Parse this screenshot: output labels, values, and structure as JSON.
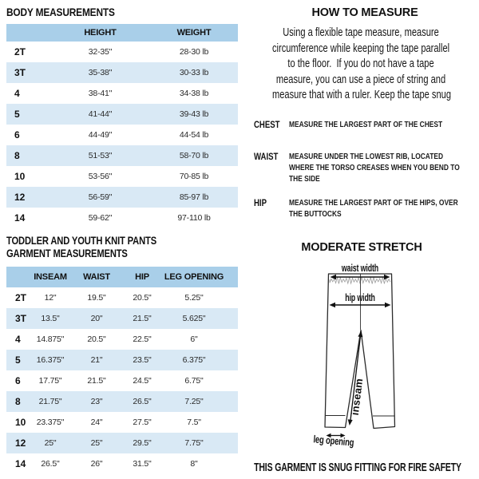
{
  "body_measurements": {
    "title": "BODY MEASUREMENTS",
    "columns": [
      "HEIGHT",
      "WEIGHT"
    ],
    "rows": [
      {
        "size": "2T",
        "values": [
          "32-35\"",
          "28-30 lb"
        ]
      },
      {
        "size": "3T",
        "values": [
          "35-38\"",
          "30-33 lb"
        ]
      },
      {
        "size": "4",
        "values": [
          "38-41\"",
          "34-38 lb"
        ]
      },
      {
        "size": "5",
        "values": [
          "41-44\"",
          "39-43 lb"
        ]
      },
      {
        "size": "6",
        "values": [
          "44-49\"",
          "44-54 lb"
        ]
      },
      {
        "size": "8",
        "values": [
          "51-53\"",
          "58-70 lb"
        ]
      },
      {
        "size": "10",
        "values": [
          "53-56\"",
          "70-85 lb"
        ]
      },
      {
        "size": "12",
        "values": [
          "56-59\"",
          "85-97 lb"
        ]
      },
      {
        "size": "14",
        "values": [
          "59-62\"",
          "97-110 lb"
        ]
      }
    ]
  },
  "garment_measurements": {
    "title_line1": "TODDLER AND YOUTH KNIT PANTS",
    "title_line2": "GARMENT MEASUREMENTS",
    "columns": [
      "INSEAM",
      "WAIST",
      "HIP",
      "LEG OPENING"
    ],
    "rows": [
      {
        "size": "2T",
        "values": [
          "12\"",
          "19.5\"",
          "20.5\"",
          "5.25\""
        ]
      },
      {
        "size": "3T",
        "values": [
          "13.5\"",
          "20\"",
          "21.5\"",
          "5.625\""
        ]
      },
      {
        "size": "4",
        "values": [
          "14.875\"",
          "20.5\"",
          "22.5\"",
          "6\""
        ]
      },
      {
        "size": "5",
        "values": [
          "16.375\"",
          "21\"",
          "23.5\"",
          "6.375\""
        ]
      },
      {
        "size": "6",
        "values": [
          "17.75\"",
          "21.5\"",
          "24.5\"",
          "6.75\""
        ]
      },
      {
        "size": "8",
        "values": [
          "21.75\"",
          "23\"",
          "26.5\"",
          "7.25\""
        ]
      },
      {
        "size": "10",
        "values": [
          "23.375\"",
          "24\"",
          "27.5\"",
          "7.5\""
        ]
      },
      {
        "size": "12",
        "values": [
          "25\"",
          "25\"",
          "29.5\"",
          "7.75\""
        ]
      },
      {
        "size": "14",
        "values": [
          "26.5\"",
          "26\"",
          "31.5\"",
          "8\""
        ]
      }
    ]
  },
  "how_to_measure": {
    "title": "HOW TO MEASURE",
    "paragraph_lines": [
      "Using a flexible tape measure, measure",
      "circumference while keeping the tape parallel",
      "to the floor.  If you do not have a tape",
      "measure, you can use a piece of string and",
      "measure that with a ruler. Keep the tape snug"
    ],
    "definitions": [
      {
        "label": "CHEST",
        "lines": [
          "MEASURE THE LARGEST PART OF THE CHEST"
        ]
      },
      {
        "label": "WAIST",
        "lines": [
          "MEASURE UNDER THE LOWEST RIB, LOCATED",
          "WHERE THE TORSO CREASES WHEN YOU BEND TO",
          "THE SIDE"
        ]
      },
      {
        "label": "HIP",
        "lines": [
          "MEASURE THE LARGEST PART OF THE HIPS, OVER",
          "THE BUTTOCKS"
        ]
      }
    ]
  },
  "diagram": {
    "title": "MODERATE STRETCH",
    "labels": {
      "waist": "waist width",
      "hip": "hip width",
      "inseam": "inseam",
      "leg_opening": "leg opening"
    }
  },
  "footer": {
    "fire_safety": "THIS GARMENT IS SNUG FITTING FOR FIRE SAFETY"
  },
  "colors": {
    "header_blue": "#a9cfe9",
    "row_blue": "#d9e9f5",
    "text": "#111111"
  }
}
